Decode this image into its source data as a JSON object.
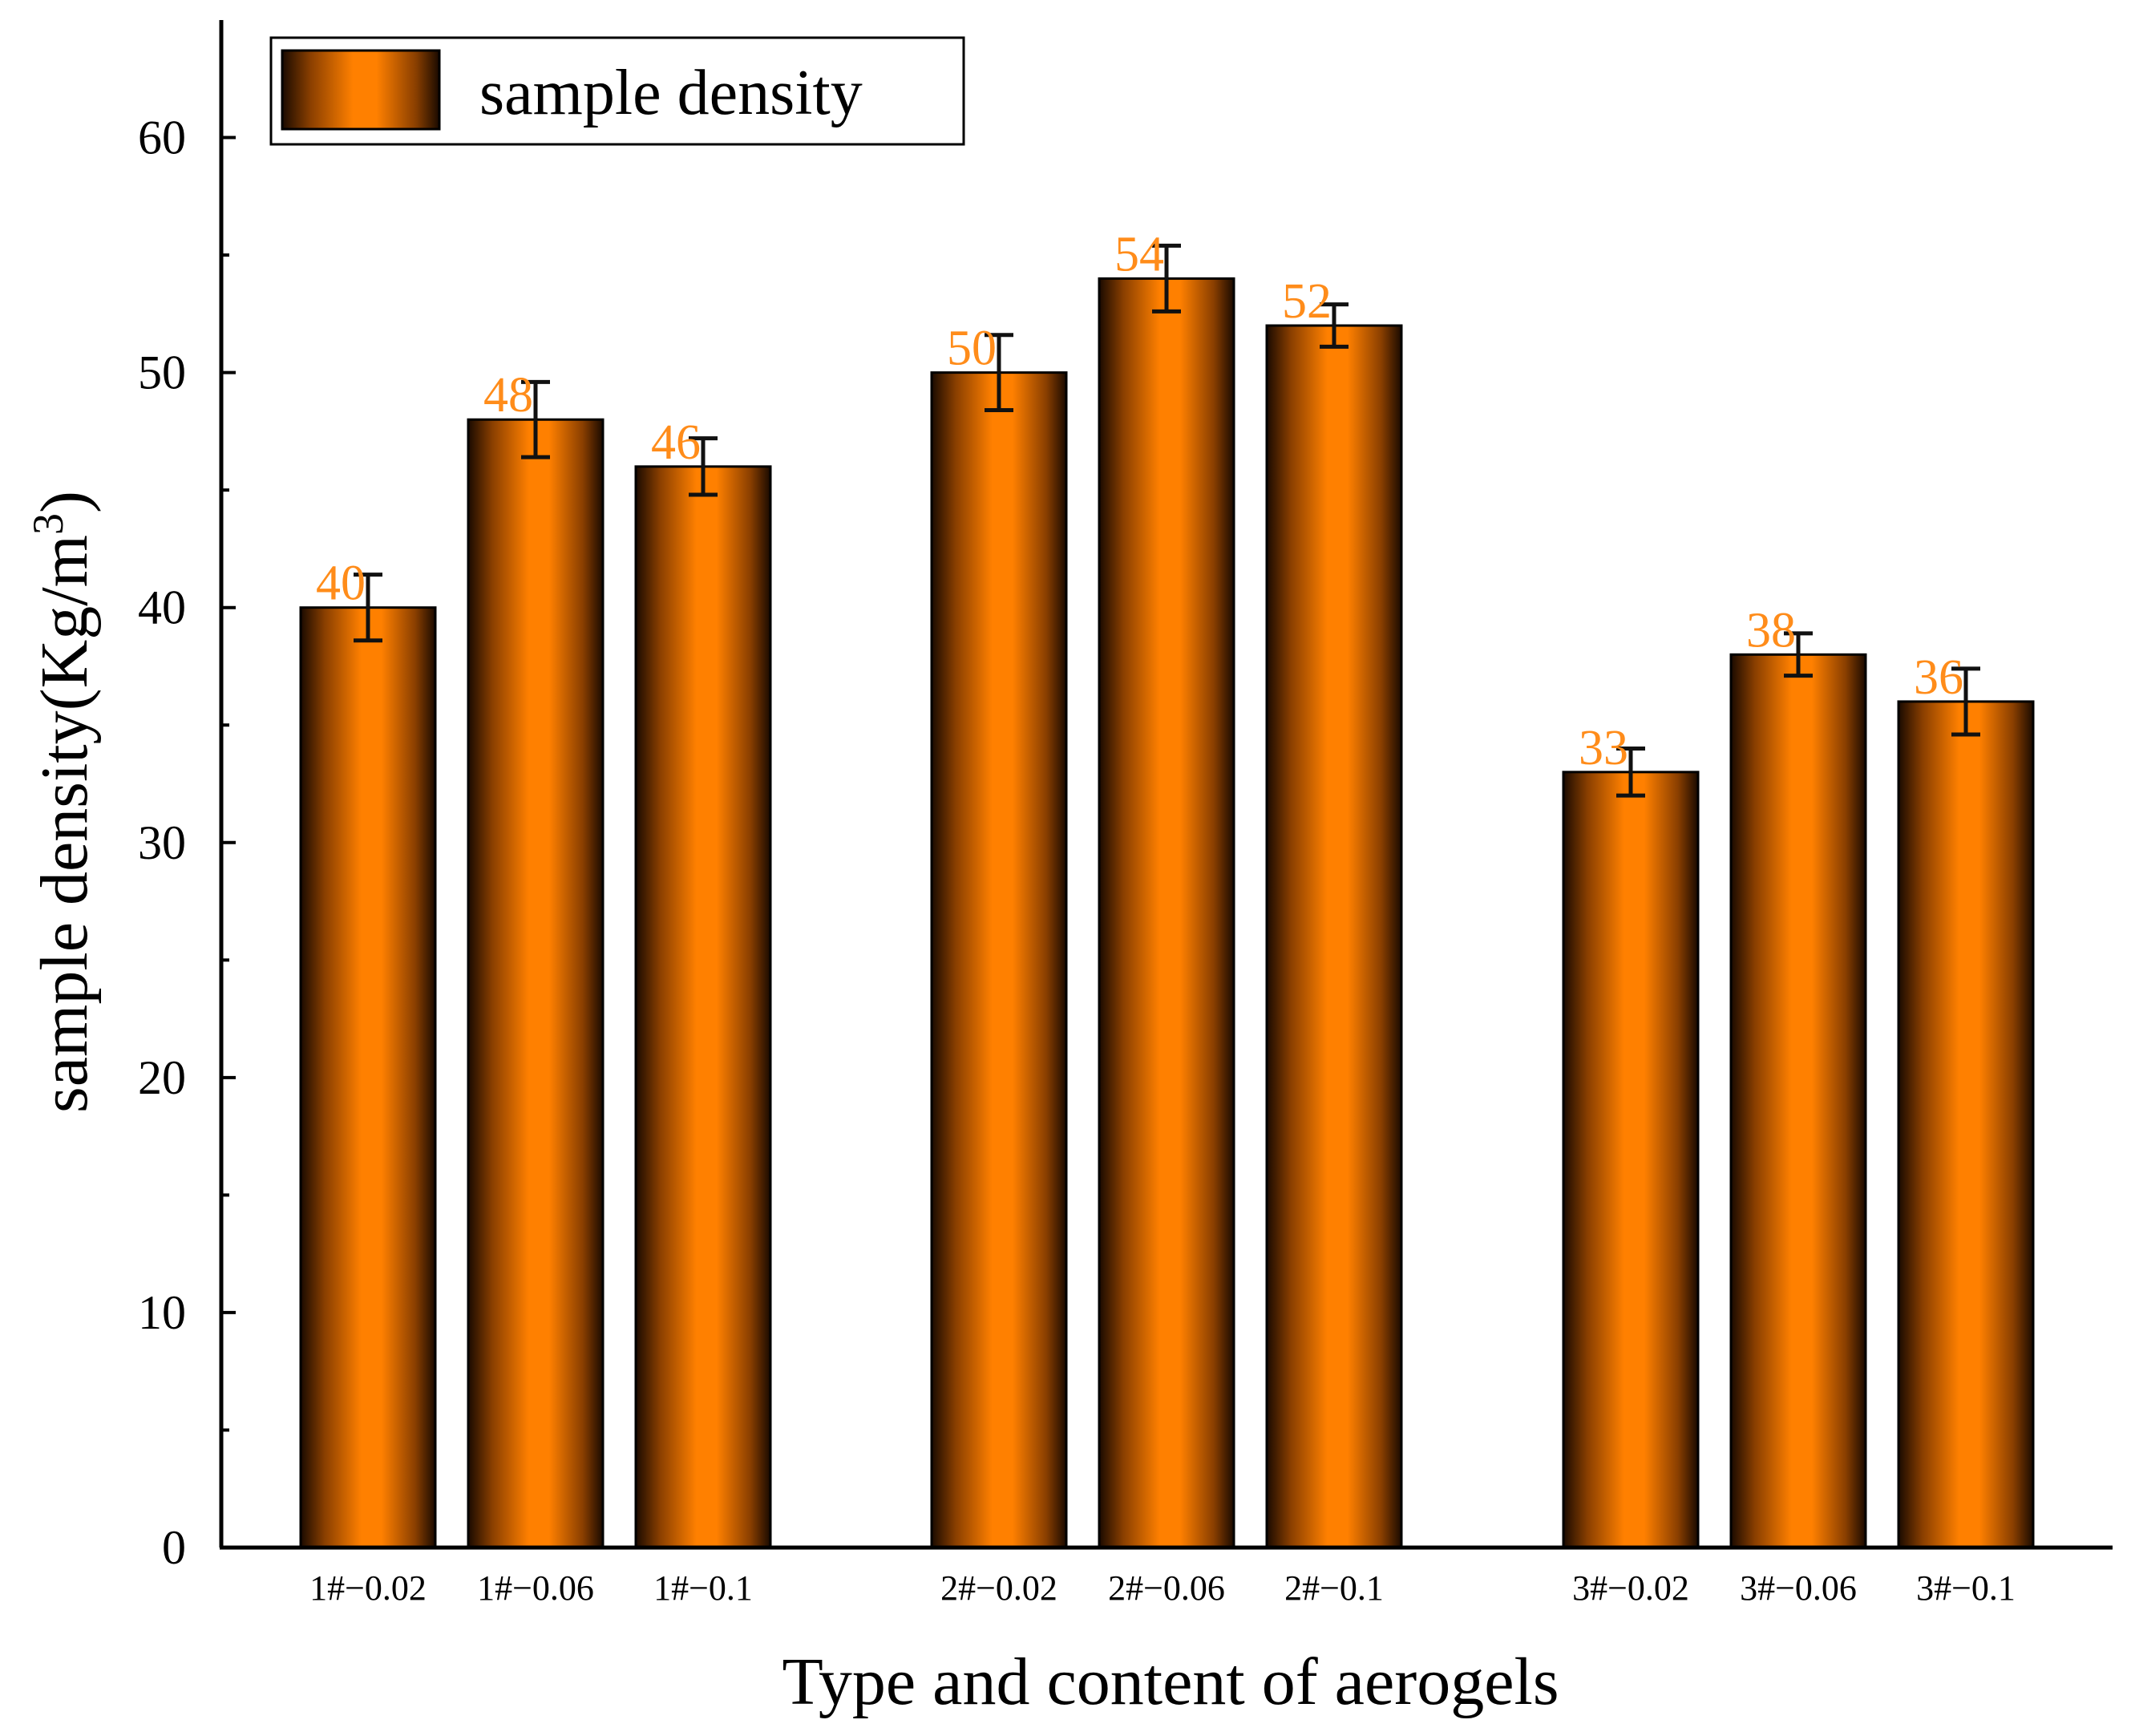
{
  "chart_data": {
    "type": "bar",
    "categories": [
      "1#−0.02",
      "1#−0.06",
      "1#−0.1",
      "2#−0.02",
      "2#−0.06",
      "2#−0.1",
      "3#−0.02",
      "3#−0.06",
      "3#−0.1"
    ],
    "groups": [
      [
        0,
        1,
        2
      ],
      [
        3,
        4,
        5
      ],
      [
        6,
        7,
        8
      ]
    ],
    "series": [
      {
        "name": "sample density",
        "values": [
          40,
          48,
          46,
          50,
          54,
          52,
          33,
          38,
          36
        ],
        "errors": [
          1.4,
          1.6,
          1.2,
          1.6,
          1.4,
          0.9,
          1.0,
          0.9,
          1.4
        ],
        "data_labels": [
          "40",
          "48",
          "46",
          "50",
          "54",
          "52",
          "33",
          "38",
          "36"
        ]
      }
    ],
    "title": "",
    "xlabel": "Type and content of aerogels",
    "ylabel_main": "sample density(Kg/m",
    "ylabel_sup": "3",
    "ylabel_close": ")",
    "ylim": [
      0,
      65
    ],
    "yticks": [
      0,
      10,
      20,
      30,
      40,
      50,
      60
    ],
    "ytick_labels": [
      "0",
      "10",
      "20",
      "30",
      "40",
      "50",
      "60"
    ],
    "grid": false,
    "legend_position": "top-left",
    "colors": {
      "bar_center": "#ff8000",
      "bar_edge": "#1a0a00",
      "label": "#ff8c1a"
    }
  }
}
